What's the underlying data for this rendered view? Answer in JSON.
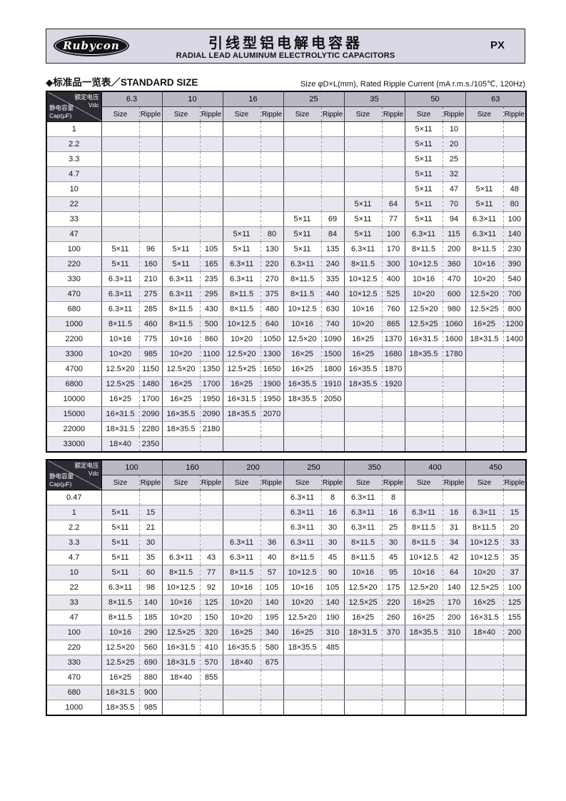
{
  "header": {
    "brand": "Rubycon",
    "title_cn": "引线型铝电解电容器",
    "title_en": "RADIAL LEAD ALUMINUM ELECTROLYTIC CAPACITORS",
    "series": "PX"
  },
  "section": {
    "heading": "◆标准品一览表／STANDARD SIZE",
    "note": "Size φD×L(mm), Rated Ripple Current (mA r.m.s./105℃, 120Hz)"
  },
  "corner": {
    "voltage_cn": "额定电压",
    "voltage_unit": "Vdc",
    "cap_cn": "静电容量",
    "cap_unit": "Cap(μF)"
  },
  "subheaders": {
    "size": "Size",
    "ripple": "Ripple"
  },
  "table1": {
    "voltages": [
      "6.3",
      "10",
      "16",
      "25",
      "35",
      "50",
      "63"
    ],
    "rows": [
      [
        "1",
        "",
        "",
        "",
        "",
        "",
        "",
        "",
        "",
        "",
        "",
        "5×11",
        "10",
        "",
        ""
      ],
      [
        "2.2",
        "",
        "",
        "",
        "",
        "",
        "",
        "",
        "",
        "",
        "",
        "5×11",
        "20",
        "",
        ""
      ],
      [
        "3.3",
        "",
        "",
        "",
        "",
        "",
        "",
        "",
        "",
        "",
        "",
        "5×11",
        "25",
        "",
        ""
      ],
      [
        "4.7",
        "",
        "",
        "",
        "",
        "",
        "",
        "",
        "",
        "",
        "",
        "5×11",
        "32",
        "",
        ""
      ],
      [
        "10",
        "",
        "",
        "",
        "",
        "",
        "",
        "",
        "",
        "",
        "",
        "5×11",
        "47",
        "5×11",
        "48"
      ],
      [
        "22",
        "",
        "",
        "",
        "",
        "",
        "",
        "",
        "",
        "5×11",
        "64",
        "5×11",
        "70",
        "5×11",
        "80"
      ],
      [
        "33",
        "",
        "",
        "",
        "",
        "",
        "",
        "5×11",
        "69",
        "5×11",
        "77",
        "5×11",
        "94",
        "6.3×11",
        "100"
      ],
      [
        "47",
        "",
        "",
        "",
        "",
        "5×11",
        "80",
        "5×11",
        "84",
        "5×11",
        "100",
        "6.3×11",
        "115",
        "6.3×11",
        "140"
      ],
      [
        "100",
        "5×11",
        "96",
        "5×11",
        "105",
        "5×11",
        "130",
        "5×11",
        "135",
        "6.3×11",
        "170",
        "8×11.5",
        "200",
        "8×11.5",
        "230"
      ],
      [
        "220",
        "5×11",
        "160",
        "5×11",
        "165",
        "6.3×11",
        "220",
        "6.3×11",
        "240",
        "8×11.5",
        "300",
        "10×12.5",
        "360",
        "10×16",
        "390"
      ],
      [
        "330",
        "6.3×11",
        "210",
        "6.3×11",
        "235",
        "6.3×11",
        "270",
        "8×11.5",
        "335",
        "10×12.5",
        "400",
        "10×16",
        "470",
        "10×20",
        "540"
      ],
      [
        "470",
        "6.3×11",
        "275",
        "6.3×11",
        "295",
        "8×11.5",
        "375",
        "8×11.5",
        "440",
        "10×12.5",
        "525",
        "10×20",
        "600",
        "12.5×20",
        "700"
      ],
      [
        "680",
        "6.3×11",
        "285",
        "8×11.5",
        "430",
        "8×11.5",
        "480",
        "10×12.5",
        "630",
        "10×16",
        "760",
        "12.5×20",
        "980",
        "12.5×25",
        "800"
      ],
      [
        "1000",
        "8×11.5",
        "460",
        "8×11.5",
        "500",
        "10×12.5",
        "640",
        "10×16",
        "740",
        "10×20",
        "865",
        "12.5×25",
        "1060",
        "16×25",
        "1200"
      ],
      [
        "2200",
        "10×16",
        "775",
        "10×16",
        "860",
        "10×20",
        "1050",
        "12.5×20",
        "1090",
        "16×25",
        "1370",
        "16×31.5",
        "1600",
        "18×31.5",
        "1400"
      ],
      [
        "3300",
        "10×20",
        "985",
        "10×20",
        "1100",
        "12.5×20",
        "1300",
        "16×25",
        "1500",
        "16×25",
        "1680",
        "18×35.5",
        "1780",
        "",
        ""
      ],
      [
        "4700",
        "12.5×20",
        "1150",
        "12.5×20",
        "1350",
        "12.5×25",
        "1650",
        "16×25",
        "1800",
        "16×35.5",
        "1870",
        "",
        "",
        "",
        ""
      ],
      [
        "6800",
        "12.5×25",
        "1480",
        "16×25",
        "1700",
        "16×25",
        "1900",
        "16×35.5",
        "1910",
        "18×35.5",
        "1920",
        "",
        "",
        "",
        ""
      ],
      [
        "10000",
        "16×25",
        "1700",
        "16×25",
        "1950",
        "16×31.5",
        "1950",
        "18×35.5",
        "2050",
        "",
        "",
        "",
        "",
        "",
        ""
      ],
      [
        "15000",
        "16×31.5",
        "2090",
        "16×35.5",
        "2090",
        "18×35.5",
        "2070",
        "",
        "",
        "",
        "",
        "",
        "",
        "",
        ""
      ],
      [
        "22000",
        "18×31.5",
        "2280",
        "18×35.5",
        "2180",
        "",
        "",
        "",
        "",
        "",
        "",
        "",
        "",
        "",
        ""
      ],
      [
        "33000",
        "18×40",
        "2350",
        "",
        "",
        "",
        "",
        "",
        "",
        "",
        "",
        "",
        "",
        "",
        ""
      ]
    ]
  },
  "table2": {
    "voltages": [
      "100",
      "160",
      "200",
      "250",
      "350",
      "400",
      "450"
    ],
    "rows": [
      [
        "0.47",
        "",
        "",
        "",
        "",
        "",
        "",
        "6.3×11",
        "8",
        "6.3×11",
        "8",
        "",
        "",
        "",
        ""
      ],
      [
        "1",
        "5×11",
        "15",
        "",
        "",
        "",
        "",
        "6.3×11",
        "16",
        "6.3×11",
        "16",
        "6.3×11",
        "16",
        "6.3×11",
        "15"
      ],
      [
        "2.2",
        "5×11",
        "21",
        "",
        "",
        "",
        "",
        "6.3×11",
        "30",
        "6.3×11",
        "25",
        "8×11.5",
        "31",
        "8×11.5",
        "20"
      ],
      [
        "3.3",
        "5×11",
        "30",
        "",
        "",
        "6.3×11",
        "36",
        "6.3×11",
        "30",
        "8×11.5",
        "30",
        "8×11.5",
        "34",
        "10×12.5",
        "33"
      ],
      [
        "4.7",
        "5×11",
        "35",
        "6.3×11",
        "43",
        "6.3×11",
        "40",
        "8×11.5",
        "45",
        "8×11.5",
        "45",
        "10×12.5",
        "42",
        "10×12.5",
        "35"
      ],
      [
        "10",
        "5×11",
        "60",
        "8×11.5",
        "77",
        "8×11.5",
        "57",
        "10×12.5",
        "90",
        "10×16",
        "95",
        "10×16",
        "64",
        "10×20",
        "37"
      ],
      [
        "22",
        "6.3×11",
        "98",
        "10×12.5",
        "92",
        "10×16",
        "105",
        "10×16",
        "105",
        "12.5×20",
        "175",
        "12.5×20",
        "140",
        "12.5×25",
        "100"
      ],
      [
        "33",
        "8×11.5",
        "140",
        "10×16",
        "125",
        "10×20",
        "140",
        "10×20",
        "140",
        "12.5×25",
        "220",
        "16×25",
        "170",
        "16×25",
        "125"
      ],
      [
        "47",
        "8×11.5",
        "185",
        "10×20",
        "150",
        "10×20",
        "195",
        "12.5×20",
        "190",
        "16×25",
        "260",
        "16×25",
        "200",
        "16×31.5",
        "155"
      ],
      [
        "100",
        "10×16",
        "290",
        "12.5×25",
        "320",
        "16×25",
        "340",
        "16×25",
        "310",
        "18×31.5",
        "370",
        "18×35.5",
        "310",
        "18×40",
        "200"
      ],
      [
        "220",
        "12.5×20",
        "560",
        "16×31.5",
        "410",
        "16×35.5",
        "580",
        "18×35.5",
        "485",
        "",
        "",
        "",
        "",
        "",
        ""
      ],
      [
        "330",
        "12.5×25",
        "690",
        "18×31.5",
        "570",
        "18×40",
        "675",
        "",
        "",
        "",
        "",
        "",
        "",
        "",
        ""
      ],
      [
        "470",
        "16×25",
        "880",
        "18×40",
        "855",
        "",
        "",
        "",
        "",
        "",
        "",
        "",
        "",
        "",
        ""
      ],
      [
        "680",
        "16×31.5",
        "900",
        "",
        "",
        "",
        "",
        "",
        "",
        "",
        "",
        "",
        "",
        "",
        ""
      ],
      [
        "1000",
        "18×35.5",
        "985",
        "",
        "",
        "",
        "",
        "",
        "",
        "",
        "",
        "",
        "",
        "",
        ""
      ]
    ]
  }
}
